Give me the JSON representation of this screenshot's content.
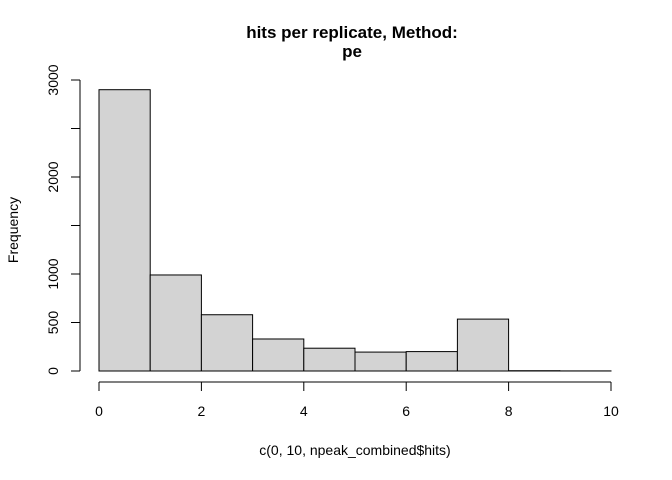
{
  "chart_data": {
    "type": "bar",
    "title_lines": [
      "hits per replicate, Method:",
      "pe"
    ],
    "xlabel": "c(0, 10, npeak_combined$hits)",
    "ylabel": "Frequency",
    "bins": [
      {
        "start": 0,
        "end": 1,
        "count": 2900
      },
      {
        "start": 1,
        "end": 2,
        "count": 990
      },
      {
        "start": 2,
        "end": 3,
        "count": 580
      },
      {
        "start": 3,
        "end": 4,
        "count": 330
      },
      {
        "start": 4,
        "end": 5,
        "count": 235
      },
      {
        "start": 5,
        "end": 6,
        "count": 195
      },
      {
        "start": 6,
        "end": 7,
        "count": 200
      },
      {
        "start": 7,
        "end": 8,
        "count": 535
      },
      {
        "start": 8,
        "end": 9,
        "count": 3
      },
      {
        "start": 9,
        "end": 10,
        "count": 1
      }
    ],
    "xlim": [
      0,
      10
    ],
    "ylim": [
      0,
      3000
    ],
    "x_ticks": [
      0,
      2,
      4,
      6,
      8,
      10
    ],
    "y_ticks": [
      0,
      500,
      1000,
      1500,
      2000,
      2500,
      3000
    ],
    "y_tick_labels": [
      "0",
      "500",
      "1000",
      "",
      "2000",
      "",
      "3000"
    ],
    "bar_fill": "#d3d3d3",
    "bar_stroke": "#000000",
    "grid": false,
    "legend": "none"
  }
}
